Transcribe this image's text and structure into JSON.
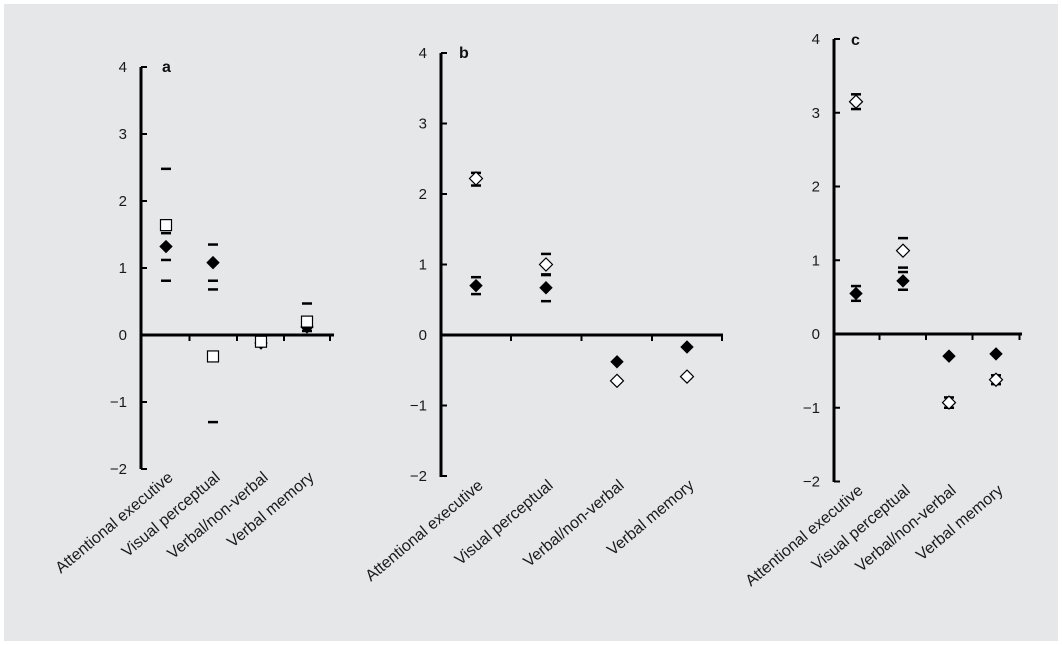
{
  "colors": {
    "background": "#e6e7e8",
    "axis": "#000000",
    "marker_fill": "#000000",
    "open_marker_fill": "#ffffff"
  },
  "chart_data": [
    {
      "type": "scatter",
      "panel_label": "a",
      "categories": [
        "Attentional executive",
        "Visual perceptual",
        "Verbal/non-verbal",
        "Verbal memory"
      ],
      "ylim": [
        -2,
        4
      ],
      "yticks": [
        4,
        3,
        2,
        1,
        0,
        -1,
        -2
      ],
      "grid": false,
      "series": [
        {
          "marker": "filled-diamond",
          "values": [
            1.32,
            1.08,
            -0.12,
            0.12
          ],
          "error_low": [
            1.12,
            0.81,
            null,
            0.06
          ],
          "error_high": [
            1.52,
            1.35,
            null,
            0.2
          ]
        },
        {
          "marker": "open-square",
          "values": [
            1.64,
            -0.32,
            -0.1,
            0.2
          ],
          "error_low": [
            0.81,
            -1.3,
            null,
            0.0
          ],
          "error_high": [
            2.48,
            0.68,
            null,
            0.47
          ]
        }
      ]
    },
    {
      "type": "scatter",
      "panel_label": "b",
      "categories": [
        "Attentional executive",
        "Visual perceptual",
        "Verbal/non-verbal",
        "Verbal memory"
      ],
      "ylim": [
        -2,
        4
      ],
      "yticks": [
        4,
        3,
        2,
        1,
        0,
        -1,
        -2
      ],
      "grid": false,
      "series": [
        {
          "marker": "filled-diamond",
          "values": [
            0.7,
            0.67,
            -0.38,
            -0.17
          ],
          "error_low": [
            0.58,
            0.48,
            null,
            null
          ],
          "error_high": [
            0.82,
            0.86,
            null,
            null
          ]
        },
        {
          "marker": "open-diamond",
          "values": [
            2.22,
            1.0,
            -0.65,
            -0.59
          ],
          "error_low": [
            2.12,
            0.85,
            -0.67,
            -0.61
          ],
          "error_high": [
            2.3,
            1.15,
            -0.63,
            -0.57
          ]
        }
      ]
    },
    {
      "type": "scatter",
      "panel_label": "c",
      "categories": [
        "Attentional executive",
        "Visual perceptual",
        "Verbal/non-verbal",
        "Verbal memory"
      ],
      "ylim": [
        -2,
        4
      ],
      "yticks": [
        4,
        3,
        2,
        1,
        0,
        -1,
        -2
      ],
      "grid": false,
      "series": [
        {
          "marker": "filled-diamond",
          "values": [
            0.55,
            0.72,
            -0.3,
            -0.27
          ],
          "error_low": [
            0.45,
            0.6,
            null,
            null
          ],
          "error_high": [
            0.65,
            0.84,
            null,
            null
          ]
        },
        {
          "marker": "open-diamond",
          "values": [
            3.15,
            1.13,
            -0.93,
            -0.62
          ],
          "error_low": [
            3.05,
            0.9,
            -1.0,
            -0.68
          ],
          "error_high": [
            3.25,
            1.3,
            -0.86,
            -0.56
          ]
        }
      ]
    }
  ]
}
